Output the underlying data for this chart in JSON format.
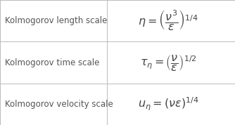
{
  "rows": [
    {
      "label": "Kolmogorov length scale",
      "formula": "$\\eta = \\left(\\dfrac{\\nu^3}{\\epsilon}\\right)^{1/4}$"
    },
    {
      "label": "Kolmogorov time scale",
      "formula": "$\\tau_{\\eta} = \\left(\\dfrac{\\nu}{\\epsilon}\\right)^{1/2}$"
    },
    {
      "label": "Kolmogorov velocity scale",
      "formula": "$u_{\\eta} = (\\nu\\epsilon)^{1/4}$"
    }
  ],
  "bg_color": "#f8f8f8",
  "line_color": "#bbbbbb",
  "text_color": "#555555",
  "formula_color": "#444444",
  "label_fontsize": 8.5,
  "formula_fontsize": 11.5,
  "col_split": 0.455,
  "figsize": [
    3.34,
    1.78
  ],
  "dpi": 100
}
